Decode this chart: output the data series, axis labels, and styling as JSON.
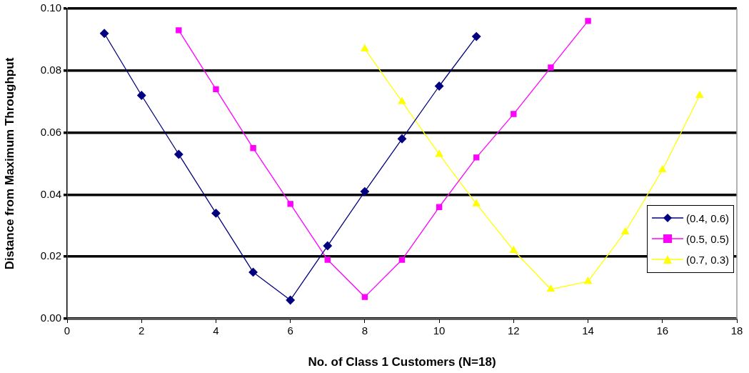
{
  "chart_data": {
    "type": "line",
    "xlabel": "No. of Class 1 Customers (N=18)",
    "ylabel": "Distance from Maximum Throughput",
    "x": [
      1,
      2,
      3,
      4,
      5,
      6,
      7,
      8,
      9,
      10,
      11,
      12,
      13,
      14,
      15,
      16,
      17
    ],
    "xlim": [
      0,
      18
    ],
    "xticks": [
      0,
      2,
      4,
      6,
      8,
      10,
      12,
      14,
      16,
      18
    ],
    "ylim": [
      0,
      0.1
    ],
    "yticks": [
      {
        "value": 0,
        "label": "0.00"
      },
      {
        "value": 0.02,
        "label": "0.02"
      },
      {
        "value": 0.04,
        "label": "0.04"
      },
      {
        "value": 0.06,
        "label": "0.06"
      },
      {
        "value": 0.08,
        "label": "0.08"
      },
      {
        "value": 0.1,
        "label": "0.10"
      }
    ],
    "grid": "y",
    "legend": "right",
    "series": [
      {
        "name": "(0.4, 0.6)",
        "color": "#000080",
        "marker": "diamond",
        "values": [
          0.092,
          0.072,
          0.053,
          0.034,
          0.015,
          0.006,
          0.0235,
          0.041,
          0.058,
          0.075,
          0.091,
          null,
          null,
          null,
          null,
          null,
          null
        ]
      },
      {
        "name": "(0.5, 0.5)",
        "color": "#ff00ff",
        "marker": "square",
        "values": [
          null,
          null,
          0.093,
          0.074,
          0.055,
          0.037,
          0.019,
          0.007,
          0.019,
          0.036,
          0.052,
          0.066,
          0.081,
          0.096,
          null,
          null,
          null
        ]
      },
      {
        "name": "(0.7, 0.3)",
        "color": "#ffff00",
        "marker": "triangle",
        "values": [
          null,
          null,
          null,
          null,
          null,
          null,
          null,
          0.087,
          0.07,
          0.053,
          0.037,
          0.022,
          0.0095,
          0.012,
          0.028,
          0.048,
          0.072
        ]
      }
    ]
  }
}
